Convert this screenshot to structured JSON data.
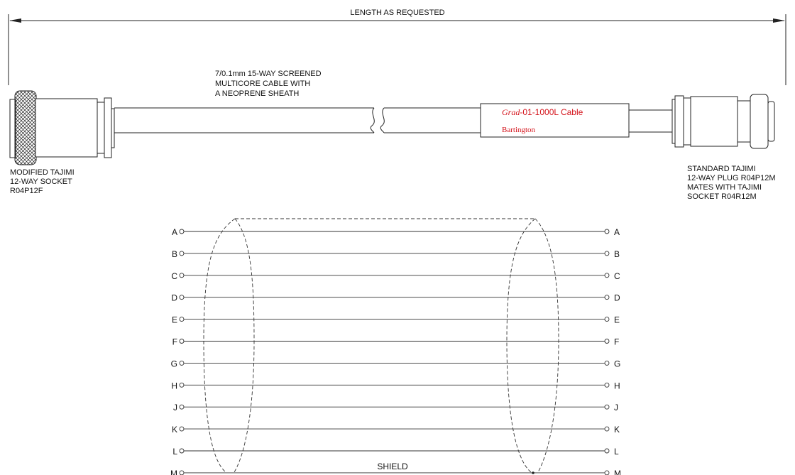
{
  "dimension": {
    "label": "LENGTH AS REQUESTED"
  },
  "cable": {
    "desc": [
      "7/0.1mm 15-WAY SCREENED",
      "MULTICORE CABLE WITH",
      "A NEOPRENE SHEATH"
    ]
  },
  "cable_label": {
    "line1_italic": "Grad",
    "line1_rest": "-01-1000L Cable",
    "line2": "Bartington",
    "color": "#d4141c"
  },
  "left_connector": {
    "lines": [
      "MODIFIED TAJIMI",
      "12-WAY SOCKET",
      "R04P12F"
    ]
  },
  "right_connector": {
    "lines": [
      "STANDARD TAJIMI",
      "12-WAY PLUG R04P12M",
      "MATES WITH TAJIMI",
      "SOCKET R04R12M"
    ]
  },
  "wiring": {
    "pins": [
      "A",
      "B",
      "C",
      "D",
      "E",
      "F",
      "G",
      "H",
      "J",
      "K",
      "L",
      "M"
    ],
    "shield_label": "SHIELD"
  }
}
